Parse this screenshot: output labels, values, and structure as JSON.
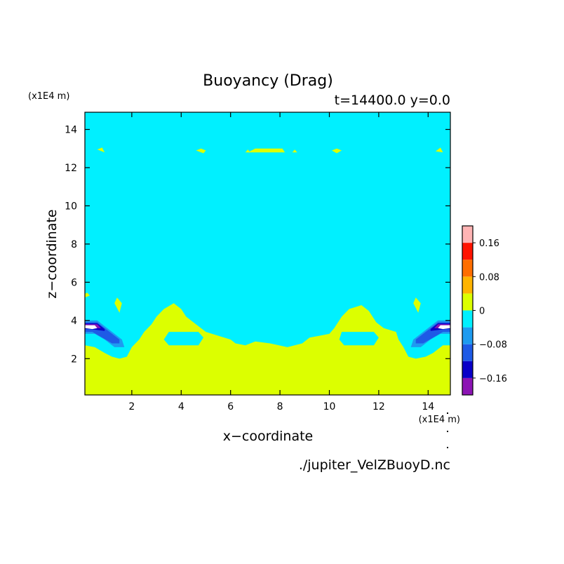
{
  "chart_data": {
    "type": "heatmap",
    "title": "Buoyancy (Drag)",
    "subtitle": "t=14400.0 y=0.0",
    "xlabel": "x−coordinate",
    "ylabel": "z−coordinate",
    "x_unit": "(x1E4 m)",
    "z_unit": "(x1E4 m)",
    "source": "./jupiter_VelZBuoyD.nc",
    "xlim": [
      0.1,
      14.9
    ],
    "ylim": [
      0.1,
      14.9
    ],
    "x_ticks": [
      2,
      4,
      6,
      8,
      10,
      12,
      14
    ],
    "y_ticks": [
      2,
      4,
      6,
      8,
      10,
      12,
      14
    ],
    "grid": false,
    "colorbar": {
      "placement": "right",
      "levels": [
        -0.2,
        -0.16,
        -0.12,
        -0.08,
        -0.04,
        0.0,
        0.04,
        0.08,
        0.12,
        0.16,
        0.2
      ],
      "colors": [
        "#8c14b4",
        "#0a00c8",
        "#1e5ae6",
        "#1e9bf0",
        "#00f0ff",
        "#dcff00",
        "#ffb400",
        "#ff6e00",
        "#ff1400",
        "#ffb4b4"
      ],
      "tick_values": [
        -0.16,
        -0.08,
        0,
        0.08,
        0.16
      ],
      "tick_labels": [
        "−0.16",
        "−0.08",
        "0",
        "0.08",
        "0.16"
      ]
    },
    "background_band": {
      "value_range": [
        -0.04,
        0.0
      ],
      "color": "#00f0ff"
    },
    "regions": [
      {
        "name": "near-zero-positive boundary layer",
        "color": "#dcff00",
        "points": [
          [
            0.1,
            0.1
          ],
          [
            14.9,
            0.1
          ],
          [
            14.9,
            2.7
          ],
          [
            14.6,
            2.7
          ],
          [
            14.2,
            2.3
          ],
          [
            13.9,
            2.1
          ],
          [
            13.5,
            2.0
          ],
          [
            13.2,
            2.1
          ],
          [
            13.0,
            2.6
          ],
          [
            12.8,
            3.0
          ],
          [
            12.7,
            3.4
          ],
          [
            12.2,
            3.6
          ],
          [
            11.9,
            3.9
          ],
          [
            11.6,
            4.5
          ],
          [
            11.3,
            4.8
          ],
          [
            10.8,
            4.6
          ],
          [
            10.5,
            4.2
          ],
          [
            10.2,
            3.6
          ],
          [
            10.0,
            3.3
          ],
          [
            9.6,
            3.2
          ],
          [
            9.2,
            3.1
          ],
          [
            8.9,
            2.8
          ],
          [
            8.3,
            2.6
          ],
          [
            7.6,
            2.8
          ],
          [
            7.0,
            2.9
          ],
          [
            6.6,
            2.7
          ],
          [
            6.2,
            2.8
          ],
          [
            6.0,
            3.0
          ],
          [
            5.5,
            3.2
          ],
          [
            5.0,
            3.4
          ],
          [
            4.7,
            3.7
          ],
          [
            4.2,
            4.2
          ],
          [
            4.0,
            4.6
          ],
          [
            3.7,
            4.9
          ],
          [
            3.3,
            4.6
          ],
          [
            3.0,
            4.2
          ],
          [
            2.8,
            3.8
          ],
          [
            2.5,
            3.4
          ],
          [
            2.3,
            3.0
          ],
          [
            2.0,
            2.6
          ],
          [
            1.8,
            2.1
          ],
          [
            1.5,
            2.0
          ],
          [
            1.2,
            2.1
          ],
          [
            0.9,
            2.3
          ],
          [
            0.5,
            2.6
          ],
          [
            0.1,
            2.7
          ]
        ]
      },
      {
        "name": "inner negative pocket left",
        "color": "#00f0ff",
        "points": [
          [
            3.5,
            3.4
          ],
          [
            4.7,
            3.4
          ],
          [
            4.9,
            3.1
          ],
          [
            4.7,
            2.7
          ],
          [
            3.5,
            2.7
          ],
          [
            3.3,
            3.0
          ]
        ]
      },
      {
        "name": "inner negative pocket right",
        "color": "#00f0ff",
        "points": [
          [
            10.5,
            3.4
          ],
          [
            11.8,
            3.4
          ],
          [
            12.0,
            3.1
          ],
          [
            11.8,
            2.7
          ],
          [
            10.6,
            2.7
          ],
          [
            10.4,
            3.0
          ]
        ]
      },
      {
        "name": "plume blue left",
        "color": "#1e9bf0",
        "points": [
          [
            0.1,
            4.0
          ],
          [
            0.6,
            4.0
          ],
          [
            1.1,
            3.5
          ],
          [
            1.6,
            3.0
          ],
          [
            1.7,
            2.6
          ],
          [
            1.3,
            2.6
          ],
          [
            0.9,
            3.0
          ],
          [
            0.5,
            3.3
          ],
          [
            0.1,
            3.3
          ]
        ]
      },
      {
        "name": "plume dark-blue left",
        "color": "#1e5ae6",
        "points": [
          [
            0.1,
            3.9
          ],
          [
            0.6,
            3.9
          ],
          [
            1.1,
            3.4
          ],
          [
            1.5,
            3.0
          ],
          [
            1.5,
            2.8
          ],
          [
            1.2,
            2.8
          ],
          [
            0.8,
            3.1
          ],
          [
            0.4,
            3.4
          ],
          [
            0.1,
            3.4
          ]
        ]
      },
      {
        "name": "plume navy left",
        "color": "#0a00c8",
        "points": [
          [
            0.1,
            3.85
          ],
          [
            0.6,
            3.85
          ],
          [
            0.9,
            3.55
          ],
          [
            0.9,
            3.45
          ],
          [
            0.6,
            3.5
          ],
          [
            0.3,
            3.55
          ],
          [
            0.1,
            3.55
          ]
        ]
      },
      {
        "name": "plume purple left",
        "color": "#8c14b4",
        "points": [
          [
            0.1,
            3.8
          ],
          [
            0.6,
            3.8
          ],
          [
            0.75,
            3.6
          ],
          [
            0.5,
            3.6
          ],
          [
            0.1,
            3.6
          ]
        ]
      },
      {
        "name": "plume core left",
        "color": "#ffffff",
        "points": [
          [
            0.1,
            3.75
          ],
          [
            0.5,
            3.75
          ],
          [
            0.6,
            3.6
          ],
          [
            0.4,
            3.55
          ],
          [
            0.1,
            3.6
          ]
        ]
      },
      {
        "name": "plume blue right",
        "color": "#1e9bf0",
        "points": [
          [
            14.9,
            4.0
          ],
          [
            14.4,
            4.0
          ],
          [
            13.9,
            3.5
          ],
          [
            13.4,
            3.0
          ],
          [
            13.3,
            2.6
          ],
          [
            13.7,
            2.6
          ],
          [
            14.1,
            3.0
          ],
          [
            14.5,
            3.3
          ],
          [
            14.9,
            3.3
          ]
        ]
      },
      {
        "name": "plume dark-blue right",
        "color": "#1e5ae6",
        "points": [
          [
            14.9,
            3.9
          ],
          [
            14.4,
            3.9
          ],
          [
            13.9,
            3.4
          ],
          [
            13.5,
            3.0
          ],
          [
            13.5,
            2.8
          ],
          [
            13.8,
            2.8
          ],
          [
            14.2,
            3.1
          ],
          [
            14.6,
            3.4
          ],
          [
            14.9,
            3.4
          ]
        ]
      },
      {
        "name": "plume navy right",
        "color": "#0a00c8",
        "points": [
          [
            14.9,
            3.85
          ],
          [
            14.4,
            3.85
          ],
          [
            14.1,
            3.55
          ],
          [
            14.1,
            3.45
          ],
          [
            14.4,
            3.5
          ],
          [
            14.7,
            3.55
          ],
          [
            14.9,
            3.55
          ]
        ]
      },
      {
        "name": "plume purple right",
        "color": "#8c14b4",
        "points": [
          [
            14.9,
            3.8
          ],
          [
            14.4,
            3.8
          ],
          [
            14.25,
            3.6
          ],
          [
            14.5,
            3.6
          ],
          [
            14.9,
            3.6
          ]
        ]
      },
      {
        "name": "plume core right",
        "color": "#ffffff",
        "points": [
          [
            14.9,
            3.75
          ],
          [
            14.5,
            3.75
          ],
          [
            14.4,
            3.6
          ],
          [
            14.6,
            3.55
          ],
          [
            14.9,
            3.6
          ]
        ]
      },
      {
        "name": "upper band patch center",
        "color": "#dcff00",
        "points": [
          [
            6.7,
            12.8
          ],
          [
            8.2,
            12.8
          ],
          [
            8.1,
            13.0
          ],
          [
            7.0,
            13.0
          ]
        ]
      },
      {
        "name": "upper patch x8.5",
        "color": "#dcff00",
        "points": [
          [
            8.5,
            12.8
          ],
          [
            8.7,
            12.8
          ],
          [
            8.6,
            12.95
          ]
        ]
      },
      {
        "name": "upper patch x6.7",
        "color": "#dcff00",
        "points": [
          [
            6.6,
            12.8
          ],
          [
            6.8,
            12.8
          ],
          [
            6.7,
            12.95
          ]
        ]
      },
      {
        "name": "upper patch x4.8",
        "color": "#dcff00",
        "points": [
          [
            4.6,
            12.9
          ],
          [
            4.9,
            12.75
          ],
          [
            5.0,
            12.9
          ],
          [
            4.8,
            13.0
          ]
        ]
      },
      {
        "name": "upper patch x10.3",
        "color": "#dcff00",
        "points": [
          [
            10.1,
            12.9
          ],
          [
            10.3,
            12.75
          ],
          [
            10.5,
            12.9
          ],
          [
            10.3,
            13.0
          ]
        ]
      },
      {
        "name": "upper patch x0.8",
        "color": "#dcff00",
        "points": [
          [
            0.6,
            12.95
          ],
          [
            0.9,
            12.8
          ],
          [
            0.8,
            13.05
          ]
        ]
      },
      {
        "name": "upper patch x14.4",
        "color": "#dcff00",
        "points": [
          [
            14.3,
            12.85
          ],
          [
            14.6,
            12.8
          ],
          [
            14.5,
            13.05
          ]
        ]
      },
      {
        "name": "mid patch left",
        "color": "#dcff00",
        "points": [
          [
            1.3,
            4.9
          ],
          [
            1.5,
            4.4
          ],
          [
            1.6,
            4.9
          ],
          [
            1.4,
            5.2
          ]
        ]
      },
      {
        "name": "mid patch right",
        "color": "#dcff00",
        "points": [
          [
            13.4,
            4.9
          ],
          [
            13.6,
            4.4
          ],
          [
            13.7,
            4.9
          ],
          [
            13.5,
            5.2
          ]
        ]
      },
      {
        "name": "edge patch left",
        "color": "#dcff00",
        "points": [
          [
            0.1,
            5.2
          ],
          [
            0.3,
            5.3
          ],
          [
            0.2,
            5.45
          ],
          [
            0.1,
            5.4
          ]
        ]
      }
    ]
  }
}
